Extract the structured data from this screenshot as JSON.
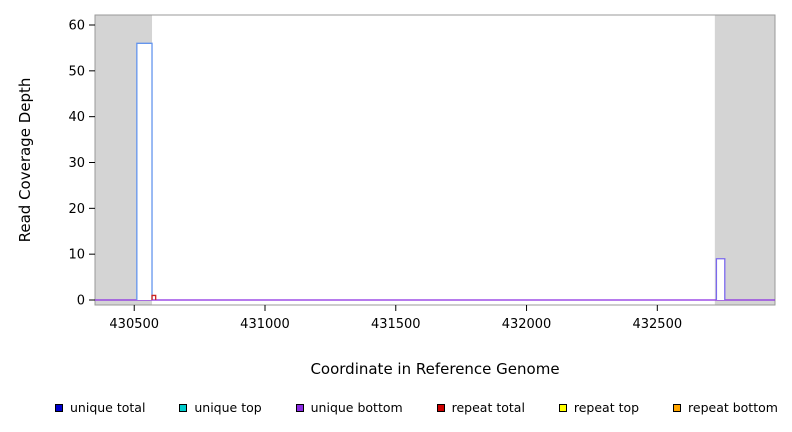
{
  "figure": {
    "background": "#ffffff"
  },
  "chart_data": {
    "type": "area",
    "title": "",
    "xlabel": "Coordinate in Reference Genome",
    "ylabel": "Read Coverage Depth",
    "xlim": [
      430350,
      432950
    ],
    "ylim": [
      0,
      60
    ],
    "x_ticks": [
      430500,
      431000,
      431500,
      432000,
      432500
    ],
    "y_ticks": [
      0,
      10,
      20,
      30,
      40,
      50,
      60
    ],
    "axis_color": "#999999",
    "tick_color": "#000000",
    "grid": "off",
    "shaded_regions": [
      {
        "x0": 430350,
        "x1": 430568,
        "color": "#d4d4d4"
      },
      {
        "x0": 432720,
        "x1": 432950,
        "color": "#d4d4d4"
      }
    ],
    "baseline": {
      "value": 0,
      "color": "#8a2be2"
    },
    "spikes": [
      {
        "series": "unique total",
        "x0": 430510,
        "x1": 430568,
        "depth": 56,
        "stroke": "#6495ed",
        "fill": "#ffffff"
      },
      {
        "series": "repeat total",
        "x0": 430568,
        "x1": 430582,
        "depth": 1,
        "stroke": "#cc2222",
        "fill": "none"
      },
      {
        "series": "unique total",
        "x0": 432726,
        "x1": 432758,
        "depth": 9,
        "stroke": "#7b68ee",
        "fill": "#ffffff"
      }
    ]
  },
  "legend": {
    "position": "bottom",
    "items": [
      {
        "label": "unique total",
        "color": "#0000cc"
      },
      {
        "label": "unique top",
        "color": "#00cccc"
      },
      {
        "label": "unique bottom",
        "color": "#8a2be2"
      },
      {
        "label": "repeat total",
        "color": "#cc0000"
      },
      {
        "label": "repeat top",
        "color": "#ffff00"
      },
      {
        "label": "repeat bottom",
        "color": "#ffa500"
      }
    ]
  }
}
